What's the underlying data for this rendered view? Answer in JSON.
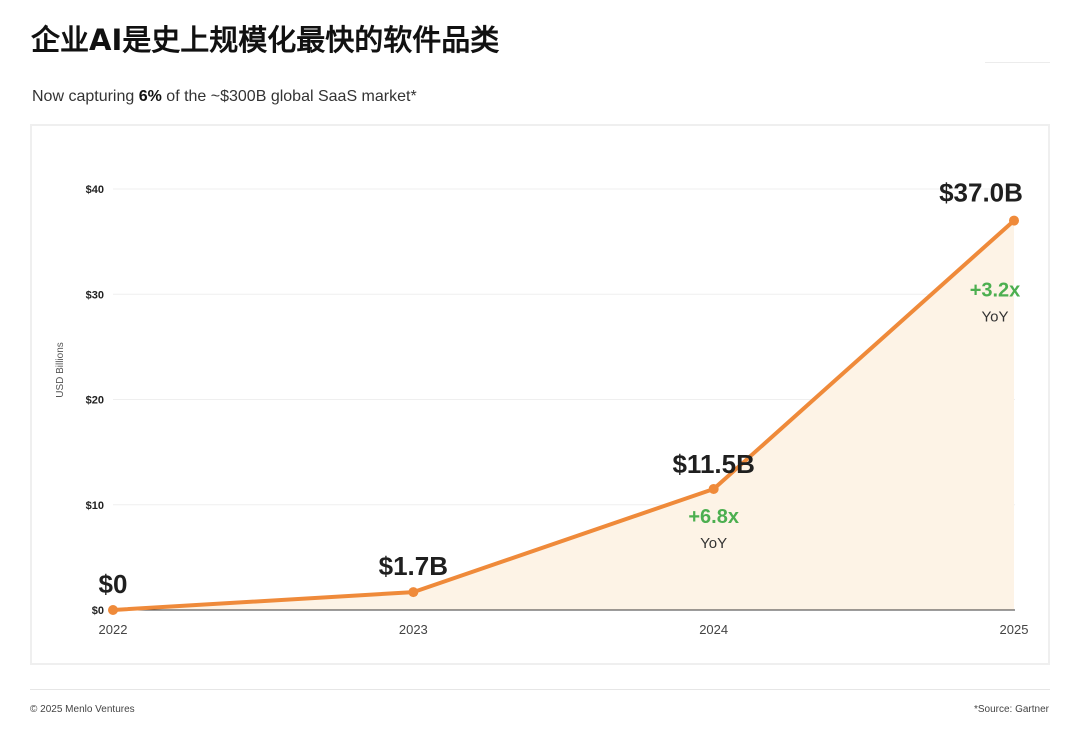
{
  "colors": {
    "line": "#ef8a3a",
    "area": "#fdf3e6",
    "growth": "#4caf50",
    "axis": "#3a3a3a",
    "grid": "#efefef"
  },
  "chart_data": {
    "type": "area",
    "title": "企业AI是史上规模化最快的软件品类",
    "subtitle": [
      {
        "text": "Now capturing ",
        "bold": false
      },
      {
        "text": "6%",
        "bold": true
      },
      {
        "text": " of the ~$300B global SaaS market*",
        "bold": false
      }
    ],
    "xlabel": "",
    "ylabel": "USD Billions",
    "categories": [
      "2022",
      "2023",
      "2024",
      "2025"
    ],
    "values": [
      0,
      1.7,
      11.5,
      37.0
    ],
    "data_labels": [
      "$0",
      "$1.7B",
      "$11.5B",
      "$37.0B"
    ],
    "ylim": [
      0,
      40
    ],
    "yticks": [
      0,
      10,
      20,
      30,
      40
    ],
    "ytick_labels": [
      "$0",
      "$10",
      "$20",
      "$30",
      "$40"
    ],
    "grid": true,
    "annotations": [
      {
        "category": "2024",
        "text": "+6.8x",
        "subtext": "YoY"
      },
      {
        "category": "2025",
        "text": "+3.2x",
        "subtext": "YoY"
      }
    ]
  },
  "footer": {
    "copyright": "© 2025 Menlo Ventures",
    "source": "*Source: Gartner"
  }
}
